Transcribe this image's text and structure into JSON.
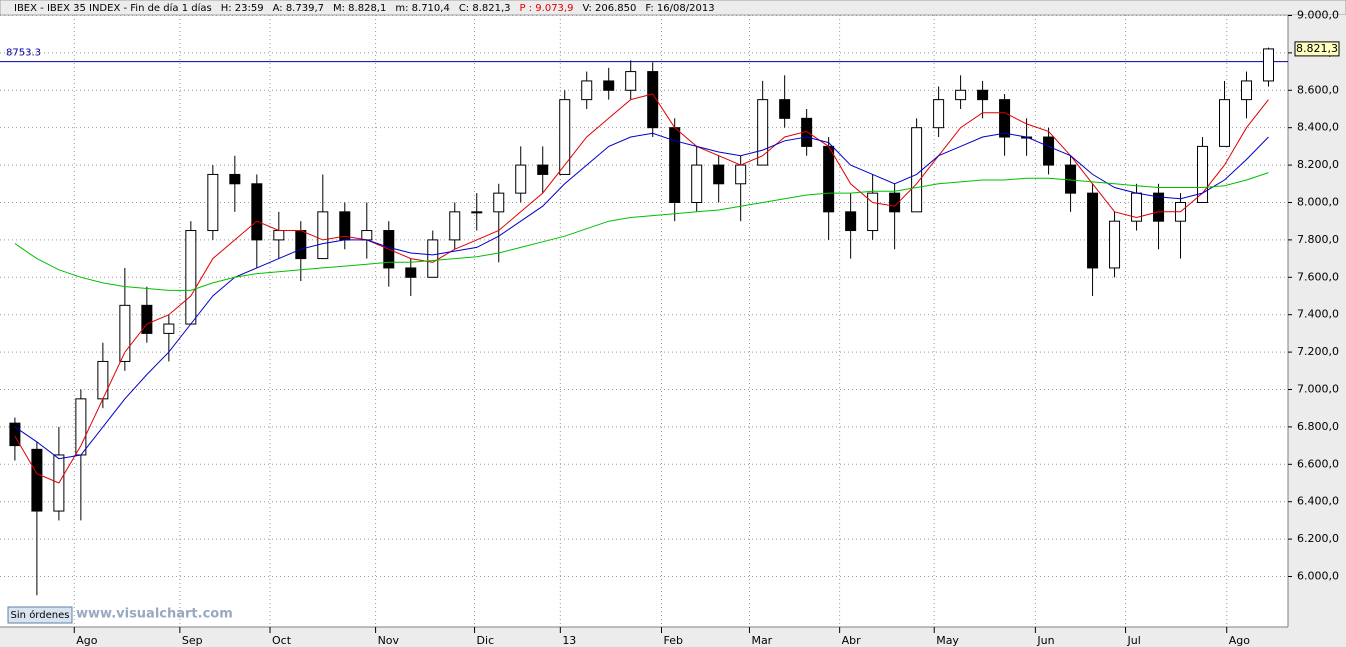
{
  "chart_data": {
    "type": "candlestick",
    "header": {
      "name": "IBEX - IBEX 35 INDEX - Fin de día 1 días",
      "hour": "H: 23:59",
      "open": "A: 8.739,7",
      "high": "M: 8.828,1",
      "low": "m: 8.710,4",
      "close": "C: 8.821,3",
      "point": "P : 9.073,9",
      "volume": "V: 206.850",
      "date": "F: 16/08/2013"
    },
    "candles": {
      "open": [
        6820,
        6680,
        6350,
        6650,
        6950,
        7150,
        7450,
        7300,
        7350,
        7850,
        8150,
        8100,
        7800,
        7850,
        7700,
        7950,
        7800,
        7850,
        7650,
        7600,
        7800,
        7950,
        7950,
        8050,
        8200,
        8150,
        8550,
        8650,
        8600,
        8700,
        8400,
        8000,
        8200,
        8100,
        8200,
        8550,
        8450,
        8300,
        7950,
        7850,
        8050,
        7950,
        8400,
        8550,
        8600,
        8550,
        8350,
        8350,
        8200,
        8050,
        7650,
        7900,
        8050,
        7900,
        8000,
        8300,
        8550,
        8650
      ],
      "high": [
        6850,
        6720,
        6800,
        7000,
        7250,
        7650,
        7550,
        7400,
        7900,
        8200,
        8250,
        8150,
        7950,
        7900,
        8150,
        8000,
        8000,
        7900,
        7700,
        7850,
        8000,
        8050,
        8100,
        8300,
        8300,
        8600,
        8700,
        8720,
        8760,
        8750,
        8450,
        8300,
        8250,
        8250,
        8650,
        8680,
        8500,
        8350,
        8050,
        8150,
        8100,
        8450,
        8620,
        8680,
        8650,
        8580,
        8450,
        8400,
        8250,
        8100,
        7950,
        8100,
        8100,
        8050,
        8350,
        8650,
        8700,
        8828
      ],
      "low": [
        6620,
        5900,
        6300,
        6300,
        6900,
        7100,
        7250,
        7150,
        7350,
        7800,
        7950,
        7650,
        7700,
        7580,
        7700,
        7750,
        7700,
        7550,
        7500,
        7600,
        7750,
        7850,
        7680,
        8000,
        8050,
        8150,
        8500,
        8550,
        8550,
        8350,
        7900,
        7950,
        8000,
        7900,
        8200,
        8400,
        8250,
        7800,
        7700,
        7800,
        7750,
        7950,
        8350,
        8500,
        8450,
        8250,
        8250,
        8150,
        7950,
        7500,
        7600,
        7850,
        7750,
        7700,
        8000,
        8300,
        8450,
        8620
      ],
      "close": [
        6700,
        6350,
        6650,
        6950,
        7150,
        7450,
        7300,
        7350,
        7850,
        8150,
        8100,
        7800,
        7850,
        7700,
        7950,
        7800,
        7850,
        7650,
        7600,
        7800,
        7950,
        7950,
        8050,
        8200,
        8150,
        8550,
        8650,
        8600,
        8700,
        8400,
        8000,
        8200,
        8100,
        8200,
        8550,
        8450,
        8300,
        7950,
        7850,
        8050,
        7950,
        8400,
        8550,
        8600,
        8550,
        8350,
        8350,
        8200,
        8050,
        7650,
        7900,
        8050,
        7900,
        8000,
        8300,
        8550,
        8650,
        8821.3
      ]
    },
    "series": [
      {
        "color": "#e00000",
        "values": [
          6750,
          6550,
          6500,
          6700,
          6950,
          7200,
          7350,
          7400,
          7500,
          7700,
          7800,
          7900,
          7850,
          7850,
          7800,
          7820,
          7800,
          7750,
          7700,
          7680,
          7750,
          7800,
          7850,
          7950,
          8050,
          8200,
          8350,
          8450,
          8550,
          8580,
          8400,
          8300,
          8250,
          8200,
          8250,
          8350,
          8380,
          8300,
          8100,
          8000,
          7980,
          8100,
          8250,
          8400,
          8480,
          8480,
          8420,
          8380,
          8250,
          8100,
          7950,
          7920,
          7950,
          7950,
          8050,
          8200,
          8400,
          8550
        ]
      },
      {
        "color": "#0000c8",
        "values": [
          6800,
          6720,
          6630,
          6650,
          6800,
          6950,
          7080,
          7200,
          7350,
          7500,
          7600,
          7650,
          7700,
          7750,
          7780,
          7800,
          7800,
          7760,
          7730,
          7720,
          7740,
          7760,
          7820,
          7900,
          7980,
          8100,
          8200,
          8300,
          8350,
          8370,
          8330,
          8300,
          8270,
          8250,
          8280,
          8330,
          8350,
          8320,
          8200,
          8150,
          8100,
          8150,
          8250,
          8300,
          8350,
          8370,
          8350,
          8300,
          8250,
          8150,
          8080,
          8050,
          8030,
          8020,
          8050,
          8120,
          8230,
          8350
        ]
      },
      {
        "color": "#00c000",
        "values": [
          7780,
          7700,
          7640,
          7600,
          7570,
          7550,
          7540,
          7530,
          7530,
          7570,
          7600,
          7620,
          7630,
          7640,
          7650,
          7660,
          7670,
          7680,
          7680,
          7690,
          7700,
          7710,
          7730,
          7760,
          7790,
          7820,
          7860,
          7900,
          7920,
          7930,
          7940,
          7950,
          7960,
          7980,
          8000,
          8020,
          8040,
          8050,
          8050,
          8060,
          8060,
          8080,
          8100,
          8110,
          8120,
          8120,
          8130,
          8130,
          8120,
          8110,
          8100,
          8090,
          8080,
          8080,
          8080,
          8090,
          8120,
          8160
        ]
      }
    ],
    "xlim": [
      -0.45,
      57.75
    ],
    "xticks": [
      {
        "value": 2.7,
        "label": "Ago"
      },
      {
        "value": 7.5,
        "label": "Sep"
      },
      {
        "value": 11.6,
        "label": "Oct"
      },
      {
        "value": 16.4,
        "label": "Nov"
      },
      {
        "value": 20.9,
        "label": "Dic"
      },
      {
        "value": 24.8,
        "label": "13"
      },
      {
        "value": 29.4,
        "label": "Feb"
      },
      {
        "value": 33.4,
        "label": "Mar"
      },
      {
        "value": 37.5,
        "label": "Abr"
      },
      {
        "value": 41.8,
        "label": "May"
      },
      {
        "value": 46.4,
        "label": "Jun"
      },
      {
        "value": 50.5,
        "label": "Jul"
      },
      {
        "value": 55.1,
        "label": "Ago"
      }
    ],
    "ylim": [
      5730,
      9040
    ],
    "yticks": [
      {
        "value": 6000,
        "label": "6.000,0"
      },
      {
        "value": 6200,
        "label": "6.200,0"
      },
      {
        "value": 6400,
        "label": "6.400,0"
      },
      {
        "value": 6600,
        "label": "6.600,0"
      },
      {
        "value": 6800,
        "label": "6.800,0"
      },
      {
        "value": 7000,
        "label": "7.000,0"
      },
      {
        "value": 7200,
        "label": "7.200,0"
      },
      {
        "value": 7400,
        "label": "7.400,0"
      },
      {
        "value": 7600,
        "label": "7.600,0"
      },
      {
        "value": 7800,
        "label": "7.800,0"
      },
      {
        "value": 8000,
        "label": "8.000,0"
      },
      {
        "value": 8200,
        "label": "8.200,0"
      },
      {
        "value": 8400,
        "label": "8.400,0"
      },
      {
        "value": 8600,
        "label": "8.600,0"
      },
      {
        "value": 8800,
        "label": "8.800,0"
      },
      {
        "value": 9000,
        "label": "9.000,0"
      }
    ],
    "hline": {
      "value": 8753.3,
      "label": "8753.3",
      "color": "#0000a0"
    },
    "last_price": {
      "value": 8821.3,
      "label": "8.821,3"
    },
    "grid": true,
    "orders_button": "Sin órdenes",
    "watermark": "www.visualchart.com"
  }
}
